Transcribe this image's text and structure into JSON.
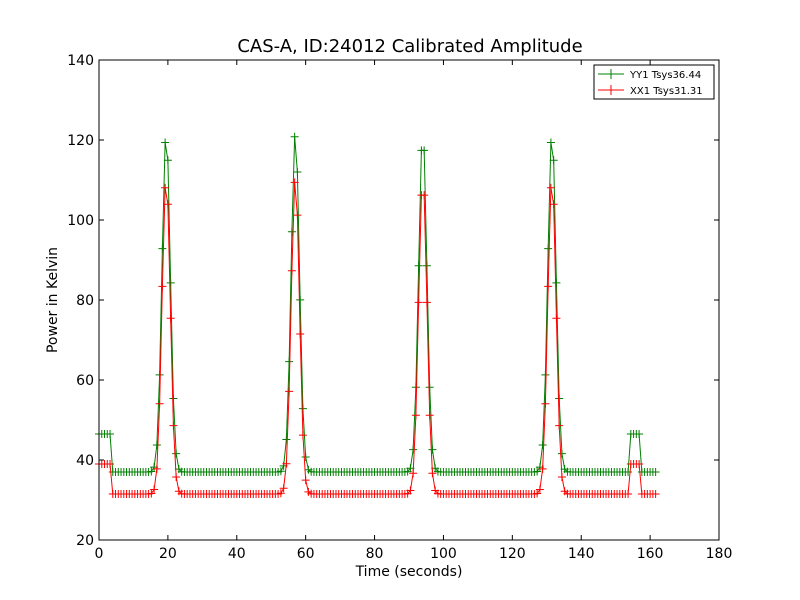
{
  "chart_data": {
    "type": "line",
    "title": "CAS-A, ID:24012 Calibrated Amplitude",
    "xlabel": "Time (seconds)",
    "ylabel": "Power in Kelvin",
    "xlim": [
      0,
      180
    ],
    "ylim": [
      20,
      140
    ],
    "x_ticks": [
      "0",
      "20",
      "40",
      "60",
      "80",
      "100",
      "120",
      "140",
      "160",
      "180"
    ],
    "y_ticks": [
      "20",
      "40",
      "60",
      "80",
      "100",
      "120",
      "140"
    ],
    "grid": false,
    "legend_position": "top-right",
    "marker": "+",
    "sample_step": 0.8,
    "baseline_segments": [
      {
        "from": 0,
        "to": 4,
        "yy": 46.5,
        "xx": 39.0
      },
      {
        "from": 4,
        "to": 154,
        "yy": 37.0,
        "xx": 31.5
      },
      {
        "from": 154,
        "to": 157.5,
        "yy": 46.5,
        "xx": 39.0
      },
      {
        "from": 157.5,
        "to": 162,
        "yy": 37.0,
        "xx": 31.5
      }
    ],
    "peaks": [
      {
        "time": 19.5,
        "yy": 122,
        "xx": 110.5
      },
      {
        "time": 57,
        "yy": 122,
        "xx": 110.5
      },
      {
        "time": 94,
        "yy": 122,
        "xx": 110.5
      },
      {
        "time": 131.5,
        "yy": 122,
        "xx": 110.5
      }
    ],
    "series": [
      {
        "name": "YY1 Tsys36.44",
        "key": "yy",
        "color": "#008000"
      },
      {
        "name": "XX1 Tsys31.31",
        "key": "xx",
        "color": "#ff0000"
      }
    ]
  }
}
